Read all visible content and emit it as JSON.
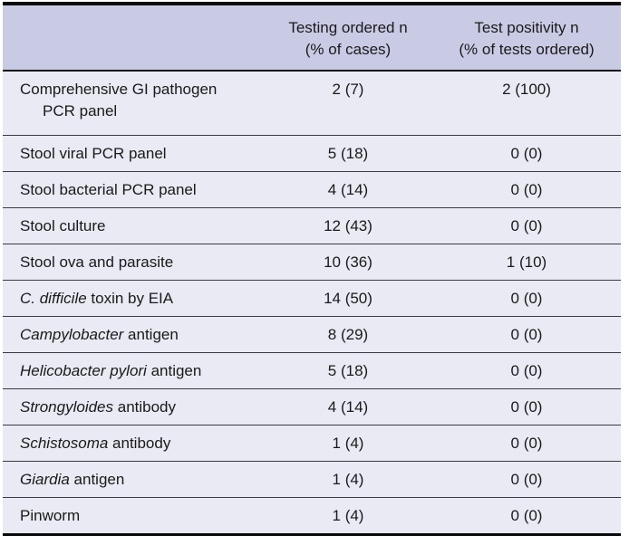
{
  "colors": {
    "header_bg": "#c9cae4",
    "row_bg": "#e9eaf3",
    "rule": "#3a3a44",
    "frame": "#0b0b0d",
    "text": "#1a1a1a"
  },
  "header": {
    "col_test": "",
    "col_ordered_line1": "Testing ordered n",
    "col_ordered_line2": "(% of cases)",
    "col_positivity_line1": "Test positivity n",
    "col_positivity_line2": "(% of tests ordered)"
  },
  "rows": [
    {
      "name_parts": [
        {
          "text": "Comprehensive GI pathogen",
          "italic": false
        },
        {
          "text": "PCR panel",
          "italic": false,
          "newline": true
        }
      ],
      "ordered": "2 (7)",
      "positivity": "2 (100)"
    },
    {
      "name_parts": [
        {
          "text": "Stool viral PCR panel",
          "italic": false
        }
      ],
      "ordered": "5 (18)",
      "positivity": "0 (0)"
    },
    {
      "name_parts": [
        {
          "text": "Stool bacterial PCR panel",
          "italic": false
        }
      ],
      "ordered": "4 (14)",
      "positivity": "0 (0)"
    },
    {
      "name_parts": [
        {
          "text": "Stool culture",
          "italic": false
        }
      ],
      "ordered": "12 (43)",
      "positivity": "0 (0)"
    },
    {
      "name_parts": [
        {
          "text": "Stool ova and parasite",
          "italic": false
        }
      ],
      "ordered": "10 (36)",
      "positivity": "1 (10)"
    },
    {
      "name_parts": [
        {
          "text": "C. difficile",
          "italic": true
        },
        {
          "text": " toxin by EIA",
          "italic": false
        }
      ],
      "ordered": "14 (50)",
      "positivity": "0 (0)"
    },
    {
      "name_parts": [
        {
          "text": "Campylobacter",
          "italic": true
        },
        {
          "text": " antigen",
          "italic": false
        }
      ],
      "ordered": "8 (29)",
      "positivity": "0 (0)"
    },
    {
      "name_parts": [
        {
          "text": "Helicobacter pylori",
          "italic": true
        },
        {
          "text": " antigen",
          "italic": false
        }
      ],
      "ordered": "5 (18)",
      "positivity": "0 (0)"
    },
    {
      "name_parts": [
        {
          "text": "Strongyloides",
          "italic": true
        },
        {
          "text": " antibody",
          "italic": false
        }
      ],
      "ordered": "4 (14)",
      "positivity": "0 (0)"
    },
    {
      "name_parts": [
        {
          "text": "Schistosoma",
          "italic": true
        },
        {
          "text": " antibody",
          "italic": false
        }
      ],
      "ordered": "1 (4)",
      "positivity": "0 (0)"
    },
    {
      "name_parts": [
        {
          "text": "Giardia",
          "italic": true
        },
        {
          "text": " antigen",
          "italic": false
        }
      ],
      "ordered": "1 (4)",
      "positivity": "0 (0)"
    },
    {
      "name_parts": [
        {
          "text": "Pinworm",
          "italic": false
        }
      ],
      "ordered": "1 (4)",
      "positivity": "0 (0)"
    }
  ]
}
